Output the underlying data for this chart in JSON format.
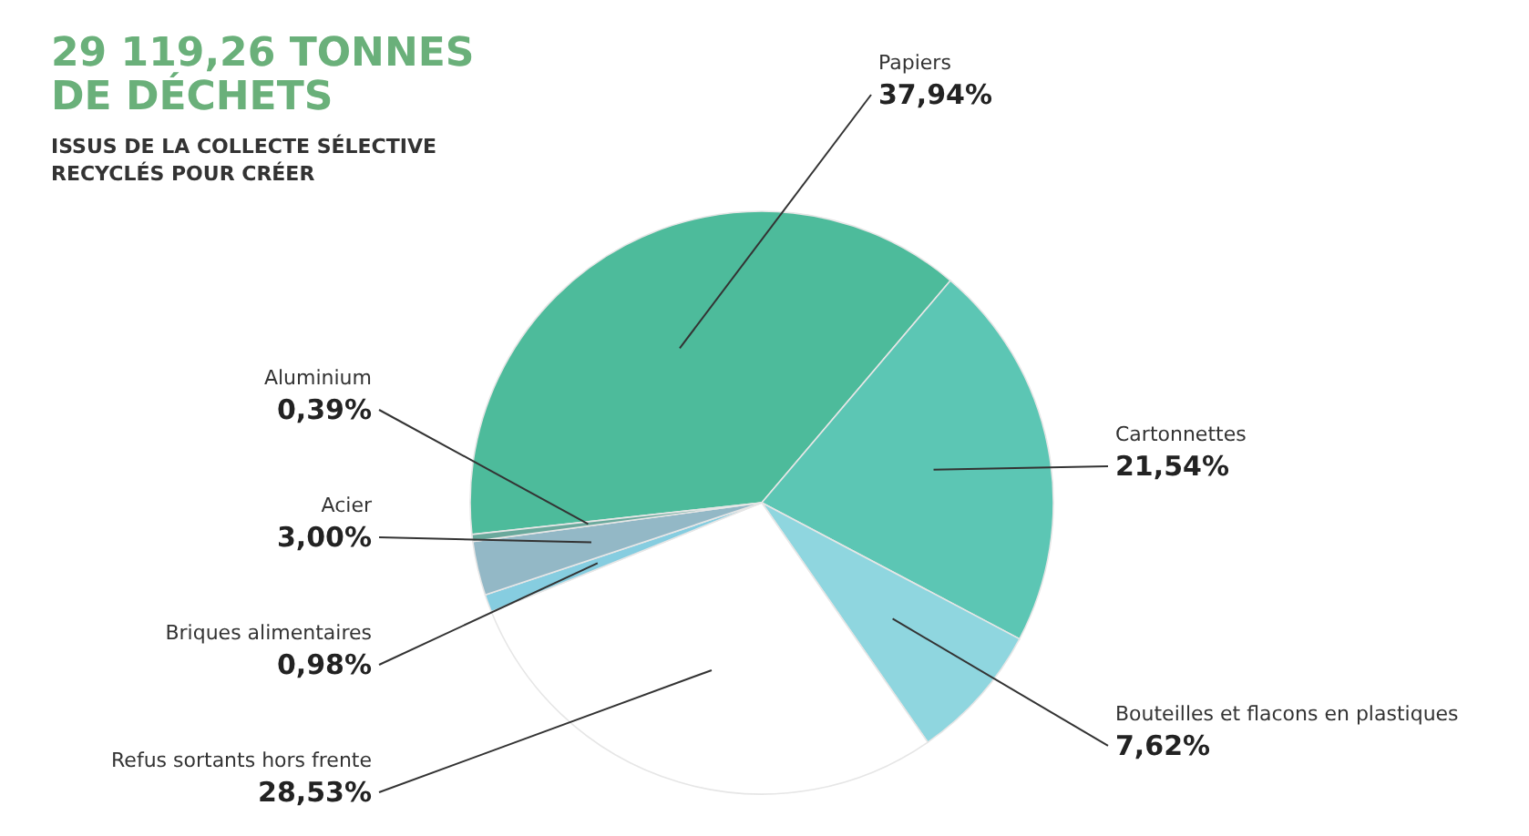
{
  "chart_data": {
    "type": "pie",
    "title": "29 119,26 TONNES\nDE DÉCHETS",
    "subtitle": "ISSUS DE LA COLLECTE SÉLECTIVE\nRECYCLÉS POUR CRÉER",
    "categories": [
      "Papiers",
      "Cartonnettes",
      "Bouteilles et flacons en plastiques",
      "Refus sortants hors frente",
      "Briques alimentaires",
      "Acier",
      "Aluminium"
    ],
    "values": [
      37.94,
      21.54,
      7.62,
      28.53,
      0.98,
      3.0,
      0.39
    ],
    "value_labels": [
      "37,94%",
      "21,54%",
      "7,62%",
      "28,53%",
      "0,98%",
      "3,00%",
      "0,39%"
    ],
    "colors": [
      "#4dbb9b",
      "#5cc6b4",
      "#8fd6df",
      "#ffffff",
      "#86cde0",
      "#93b8c6",
      "#6aa99c"
    ]
  }
}
